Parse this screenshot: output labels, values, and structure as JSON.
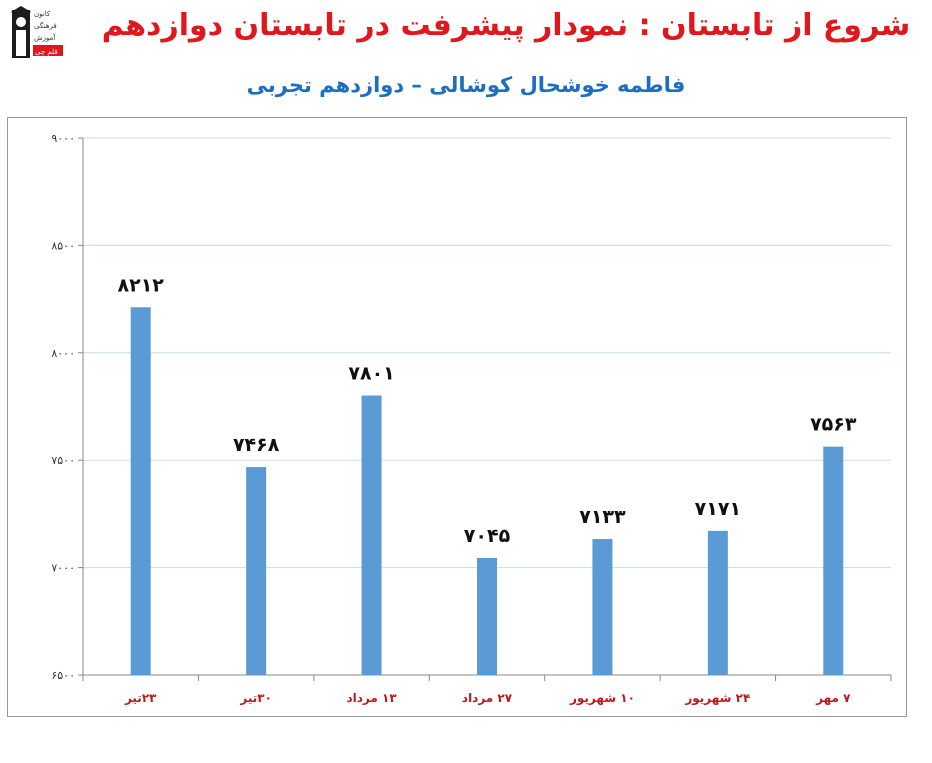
{
  "header": {
    "title": "شروع از تابستان : نمودار پیشرفت در تابستان دوازدهم",
    "subtitle": "فاطمه خوشحال کوشالی – دوازدهم تجربی",
    "logo_text": [
      "کانون",
      "فرهنگی",
      "آموزش",
      "قلم چی"
    ]
  },
  "colors": {
    "bar": "#5b9bd5",
    "title": "#e0171c",
    "subtitle": "#1a6fc2",
    "xtick": "#c0161b",
    "grid": "#c8dbe8"
  },
  "chart_data": {
    "type": "bar",
    "categories": [
      "۲۳تیر",
      "۳۰تیر",
      "۱۳ مرداد",
      "۲۷ مرداد",
      "۱۰ شهریور",
      "۲۴ شهریور",
      "۷ مهر"
    ],
    "values": [
      8212,
      7468,
      7801,
      7045,
      7133,
      7171,
      7563
    ],
    "value_labels": [
      "۸۲۱۲",
      "۷۴۶۸",
      "۷۸۰۱",
      "۷۰۴۵",
      "۷۱۳۳",
      "۷۱۷۱",
      "۷۵۶۳"
    ],
    "ylim": [
      6500,
      9000
    ],
    "yticks": [
      6500,
      7000,
      7500,
      8000,
      8500,
      9000
    ],
    "ytick_labels": [
      "۶۵۰۰",
      "۷۰۰۰",
      "۷۵۰۰",
      "۸۰۰۰",
      "۸۵۰۰",
      "۹۰۰۰"
    ],
    "grid": true,
    "xlabel": "",
    "ylabel": ""
  }
}
